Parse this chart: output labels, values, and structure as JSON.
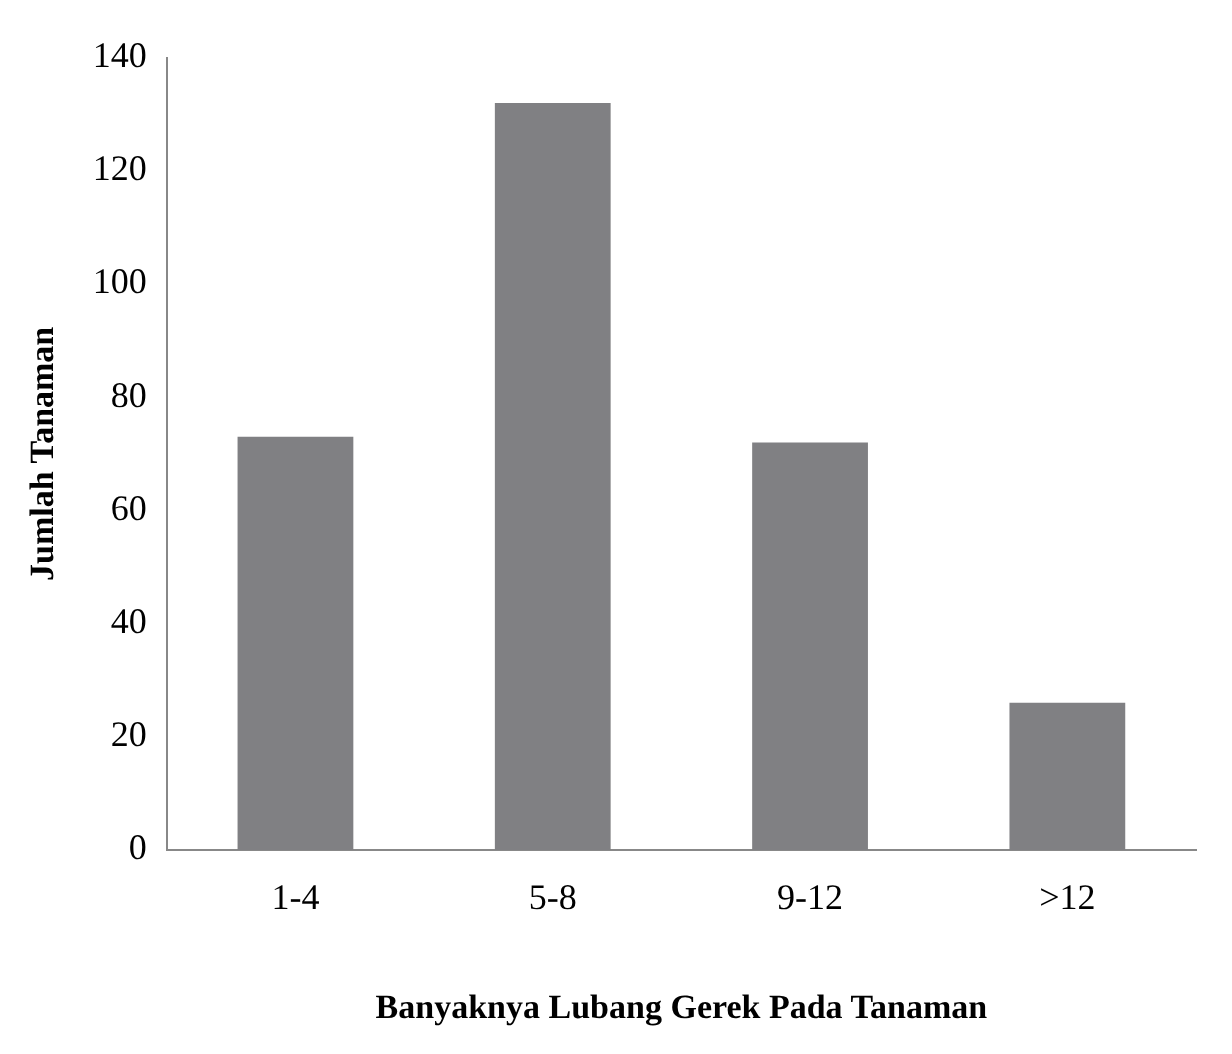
{
  "chart_data": {
    "type": "bar",
    "xlabel": "Banyaknya Lubang Gerek Pada Tanaman",
    "ylabel": "Jumlah Tanaman",
    "categories": [
      "1-4",
      "5-8",
      "9-12",
      ">12"
    ],
    "values": [
      73,
      132,
      72,
      26
    ],
    "color": "#808083",
    "ylim": [
      0,
      140
    ],
    "yticks": [
      0,
      20,
      40,
      60,
      80,
      100,
      120,
      140
    ],
    "grid": false,
    "legend": false
  }
}
